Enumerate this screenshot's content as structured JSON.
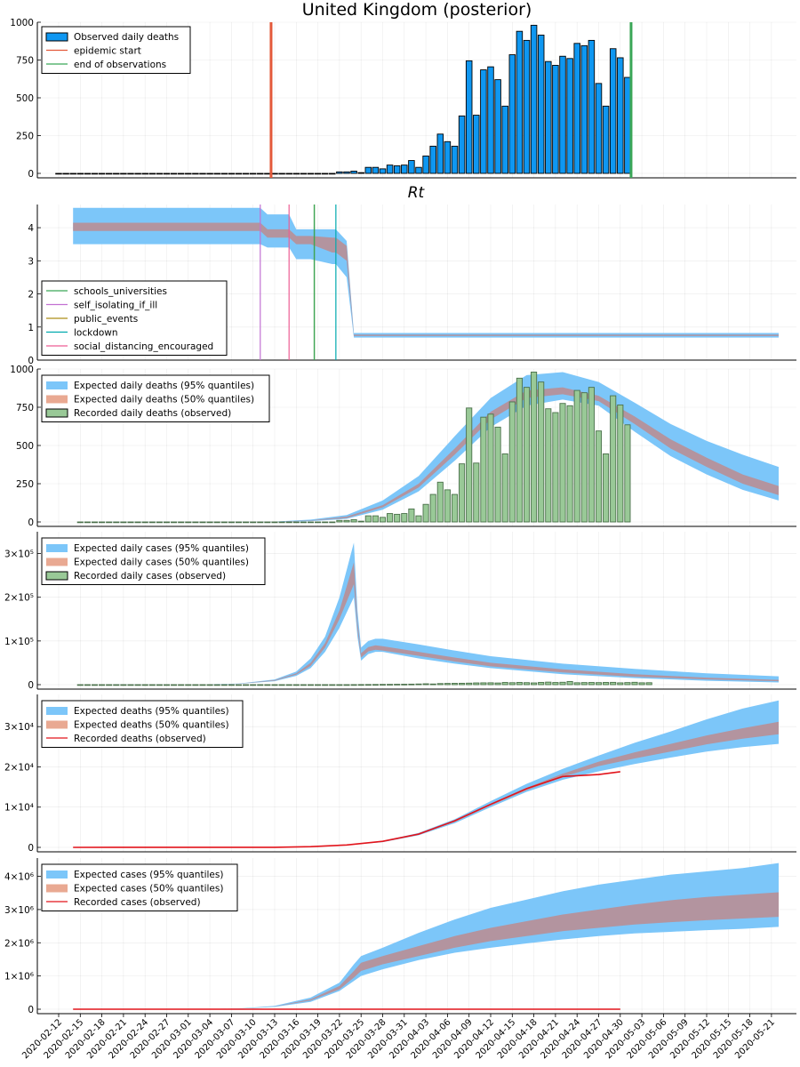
{
  "figure": {
    "xaxis": {
      "dates": [
        "2020-02-12",
        "2020-02-15",
        "2020-02-18",
        "2020-02-21",
        "2020-02-24",
        "2020-02-27",
        "2020-03-01",
        "2020-03-04",
        "2020-03-07",
        "2020-03-10",
        "2020-03-13",
        "2020-03-16",
        "2020-03-19",
        "2020-03-22",
        "2020-03-25",
        "2020-03-28",
        "2020-03-31",
        "2020-04-03",
        "2020-04-06",
        "2020-04-09",
        "2020-04-12",
        "2020-04-15",
        "2020-04-18",
        "2020-04-21",
        "2020-04-24",
        "2020-04-27",
        "2020-04-30",
        "2020-05-03",
        "2020-05-06",
        "2020-05-09",
        "2020-05-12",
        "2020-05-15",
        "2020-05-18",
        "2020-05-21"
      ]
    },
    "colors": {
      "bar_blue": "#0f97f1",
      "band95": "#7cc6f9",
      "band50": "#b3949f",
      "green_bar": "#99c997",
      "green_bar_edge": "#4a704a",
      "red_line": "#e2141b",
      "epidemic_start": "#e3593a",
      "end_obs": "#3aa657",
      "schools": "#3aa657",
      "self_isolating": "#c271d2",
      "public_events": "#ac8e18",
      "lockdown": "#00aaae",
      "social_distancing": "#ed5e93"
    }
  },
  "chart_data": [
    {
      "type": "bar",
      "title": "United Kingdom (posterior)",
      "ylim": [
        0,
        1000
      ],
      "yticks": [
        {
          "v": 0,
          "label": "0"
        },
        {
          "v": 250,
          "label": "250"
        },
        {
          "v": 500,
          "label": "500"
        },
        {
          "v": 750,
          "label": "750"
        },
        {
          "v": 1000,
          "label": "1000"
        }
      ],
      "legend": [
        "Observed daily deaths",
        "epidemic start",
        "end of observations"
      ],
      "legend_position": "top-left",
      "bar_start_day": 0,
      "values": [
        0,
        0,
        0,
        0,
        0,
        0,
        0,
        0,
        0,
        0,
        0,
        0,
        0,
        0,
        0,
        0,
        0,
        0,
        0,
        0,
        0,
        0,
        0,
        0,
        0,
        0,
        0,
        0,
        0,
        0,
        0,
        0,
        0,
        0,
        0,
        0,
        0,
        0,
        0,
        10,
        10,
        15,
        5,
        40,
        40,
        30,
        55,
        50,
        55,
        85,
        40,
        115,
        180,
        260,
        210,
        180,
        380,
        745,
        385,
        685,
        705,
        620,
        445,
        785,
        940,
        880,
        980,
        915,
        740,
        715,
        775,
        760,
        860,
        845,
        880,
        595,
        445,
        825,
        765,
        635
      ],
      "epidemic_start_day": 29.5,
      "end_observations_day": 79.5
    },
    {
      "type": "area",
      "title": "Rt",
      "ylim": [
        0,
        4.7
      ],
      "yticks": [
        {
          "v": 0,
          "label": "0"
        },
        {
          "v": 1,
          "label": "1"
        },
        {
          "v": 2,
          "label": "2"
        },
        {
          "v": 3,
          "label": "3"
        },
        {
          "v": 4,
          "label": "4"
        }
      ],
      "legend": [
        "schools_universities",
        "self_isolating_if_ill",
        "public_events",
        "lockdown",
        "social_distancing_encouraged"
      ],
      "legend_position": "bottom-left",
      "intervention_days": {
        "schools_universities": 35.5,
        "self_isolating_if_ill": 28,
        "public_events": 35.5,
        "lockdown": 38.5,
        "social_distancing_encouraged": 32
      },
      "x": [
        2,
        28,
        29,
        32,
        33,
        35,
        38,
        38.5,
        40,
        41,
        100
      ],
      "upper95": [
        4.6,
        4.6,
        4.4,
        4.4,
        3.95,
        3.95,
        3.95,
        3.95,
        3.6,
        0.82,
        0.82
      ],
      "lower95": [
        3.5,
        3.5,
        3.4,
        3.4,
        3.05,
        3.05,
        2.9,
        2.9,
        2.5,
        0.68,
        0.68
      ],
      "upper50": [
        4.15,
        4.15,
        3.95,
        3.95,
        3.75,
        3.75,
        3.7,
        3.7,
        3.45,
        0.77,
        0.77
      ],
      "lower50": [
        3.9,
        3.9,
        3.7,
        3.7,
        3.5,
        3.5,
        3.25,
        3.25,
        3.0,
        0.73,
        0.73
      ]
    },
    {
      "type": "area",
      "ylim": [
        0,
        1000
      ],
      "yticks": [
        {
          "v": 0,
          "label": "0"
        },
        {
          "v": 250,
          "label": "250"
        },
        {
          "v": 500,
          "label": "500"
        },
        {
          "v": 750,
          "label": "750"
        },
        {
          "v": 1000,
          "label": "1000"
        }
      ],
      "legend": [
        "Expected daily deaths (95% quantiles)",
        "Expected daily deaths (50% quantiles)",
        "Recorded daily deaths (observed)"
      ],
      "legend_position": "top-left",
      "bar_start_day": 3,
      "x": [
        2,
        30,
        35,
        40,
        45,
        50,
        55,
        60,
        65,
        70,
        75,
        80,
        85,
        90,
        95,
        100
      ],
      "upper95": [
        0,
        2,
        15,
        45,
        140,
        300,
        560,
        810,
        960,
        980,
        915,
        780,
        640,
        530,
        440,
        360
      ],
      "lower95": [
        0,
        1,
        5,
        20,
        80,
        200,
        400,
        620,
        760,
        800,
        760,
        590,
        430,
        310,
        210,
        140
      ],
      "upper50": [
        0,
        1,
        10,
        35,
        110,
        250,
        480,
        720,
        860,
        880,
        825,
        690,
        540,
        420,
        310,
        235
      ],
      "lower50": [
        0,
        0,
        8,
        25,
        95,
        225,
        440,
        670,
        810,
        835,
        790,
        640,
        480,
        360,
        250,
        175
      ],
      "bar_values": [
        0,
        0,
        0,
        0,
        0,
        0,
        0,
        0,
        0,
        0,
        0,
        0,
        0,
        0,
        0,
        0,
        0,
        0,
        0,
        0,
        0,
        0,
        0,
        0,
        0,
        0,
        0,
        0,
        0,
        0,
        0,
        0,
        0,
        0,
        0,
        0,
        10,
        10,
        15,
        5,
        40,
        40,
        30,
        55,
        50,
        55,
        85,
        40,
        115,
        180,
        260,
        210,
        180,
        380,
        745,
        385,
        685,
        705,
        620,
        445,
        785,
        940,
        880,
        980,
        915,
        740,
        715,
        775,
        760,
        860,
        845,
        880,
        595,
        445,
        825,
        765,
        635
      ]
    },
    {
      "type": "area",
      "ylim": [
        -5000,
        350000
      ],
      "yticks": [
        {
          "v": 0,
          "label": "0"
        },
        {
          "v": 100000,
          "label": "1×10⁵"
        },
        {
          "v": 200000,
          "label": "2×10⁵"
        },
        {
          "v": 300000,
          "label": "3×10⁵"
        }
      ],
      "legend": [
        "Expected daily cases (95% quantiles)",
        "Expected daily cases (50% quantiles)",
        "Recorded daily cases (observed)"
      ],
      "legend_position": "top-left",
      "bar_start_day": 3,
      "x": [
        2,
        20,
        25,
        30,
        33,
        35,
        37,
        39,
        41,
        41.5,
        42,
        43,
        44,
        45,
        50,
        55,
        60,
        70,
        80,
        90,
        100
      ],
      "upper95": [
        0,
        500,
        2500,
        12000,
        30000,
        60000,
        110000,
        200000,
        325000,
        170000,
        85000,
        100000,
        105000,
        105000,
        92000,
        78000,
        65000,
        48000,
        36000,
        26000,
        19000
      ],
      "lower95": [
        0,
        400,
        1800,
        8000,
        20000,
        38000,
        75000,
        130000,
        200000,
        110000,
        55000,
        70000,
        75000,
        75000,
        60000,
        48000,
        38000,
        24000,
        15000,
        9000,
        5000
      ],
      "upper50": [
        0,
        450,
        2200,
        10500,
        26000,
        50000,
        95000,
        170000,
        280000,
        145000,
        72000,
        86000,
        90000,
        88000,
        75000,
        62000,
        50000,
        35000,
        24000,
        16000,
        11000
      ],
      "lower50": [
        0,
        420,
        2000,
        9000,
        23000,
        43000,
        85000,
        150000,
        230000,
        125000,
        62000,
        76000,
        80000,
        78000,
        66000,
        53000,
        42000,
        28000,
        18000,
        12000,
        8000
      ],
      "bar_values": [
        0,
        0,
        0,
        0,
        0,
        0,
        0,
        0,
        0,
        0,
        0,
        0,
        0,
        0,
        0,
        0,
        0,
        0,
        0,
        0,
        0,
        0,
        0,
        0,
        0,
        0,
        0,
        0,
        0,
        0,
        0,
        0,
        0,
        0,
        0,
        0,
        0,
        0,
        100,
        200,
        300,
        400,
        600,
        700,
        900,
        1000,
        1200,
        1500,
        2000,
        1500,
        2500,
        2800,
        3000,
        3200,
        3500,
        4000,
        4200,
        4300,
        3800,
        5000,
        4500,
        5100,
        4600,
        4000,
        5200,
        5800,
        4900,
        5500,
        7200,
        4400,
        4800,
        5000,
        4700,
        5100,
        5300,
        4200,
        4800,
        5400,
        4300,
        4500
      ]
    },
    {
      "type": "area",
      "ylim": [
        -500,
        38000
      ],
      "yticks": [
        {
          "v": 0,
          "label": "0"
        },
        {
          "v": 10000,
          "label": "1×10⁴"
        },
        {
          "v": 20000,
          "label": "2×10⁴"
        },
        {
          "v": 30000,
          "label": "3×10⁴"
        }
      ],
      "legend": [
        "Expected deaths (95% quantiles)",
        "Expected deaths (50% quantiles)",
        "Recorded deaths (observed)"
      ],
      "legend_position": "top-left",
      "x": [
        2,
        30,
        35,
        40,
        45,
        50,
        55,
        60,
        65,
        70,
        75,
        80,
        85,
        90,
        95,
        100
      ],
      "upper95": [
        0,
        30,
        200,
        650,
        1600,
        3600,
        7000,
        11500,
        15800,
        19500,
        22800,
        26000,
        28800,
        31800,
        34500,
        36500
      ],
      "lower95": [
        0,
        20,
        150,
        550,
        1300,
        3000,
        6000,
        10000,
        13800,
        16800,
        18900,
        20700,
        22300,
        23800,
        24900,
        25700
      ],
      "upper50": [
        0,
        25,
        180,
        610,
        1450,
        3300,
        6600,
        10800,
        14800,
        18300,
        21300,
        23600,
        25700,
        27800,
        29600,
        31200
      ],
      "lower50": [
        0,
        22,
        160,
        580,
        1400,
        3200,
        6300,
        10400,
        14200,
        17500,
        20200,
        22100,
        23800,
        25600,
        27000,
        28100
      ],
      "line_x": [
        2,
        30,
        35,
        40,
        45,
        50,
        55,
        60,
        65,
        70,
        75,
        78
      ],
      "line_y": [
        0,
        20,
        170,
        600,
        1500,
        3300,
        6600,
        10700,
        14600,
        17600,
        18100,
        18800
      ]
    },
    {
      "type": "area",
      "ylim": [
        -100000,
        4550000
      ],
      "yticks": [
        {
          "v": 0,
          "label": "0"
        },
        {
          "v": 1000000,
          "label": "1×10⁶"
        },
        {
          "v": 2000000,
          "label": "2×10⁶"
        },
        {
          "v": 3000000,
          "label": "3×10⁶"
        },
        {
          "v": 4000000,
          "label": "4×10⁶"
        }
      ],
      "legend": [
        "Expected cases (95% quantiles)",
        "Expected cases (50% quantiles)",
        "Recorded cases (observed)"
      ],
      "legend_position": "top-left",
      "x": [
        2,
        20,
        25,
        30,
        35,
        39,
        41,
        42,
        45,
        50,
        55,
        60,
        65,
        70,
        75,
        80,
        85,
        90,
        95,
        100
      ],
      "upper95": [
        0,
        5000,
        20000,
        100000,
        350000,
        800000,
        1350000,
        1600000,
        1850000,
        2300000,
        2700000,
        3050000,
        3300000,
        3550000,
        3750000,
        3900000,
        4050000,
        4150000,
        4250000,
        4400000
      ],
      "lower95": [
        0,
        3000,
        15000,
        70000,
        220000,
        550000,
        850000,
        1000000,
        1200000,
        1480000,
        1700000,
        1850000,
        1980000,
        2100000,
        2200000,
        2280000,
        2330000,
        2380000,
        2420000,
        2480000
      ],
      "upper50": [
        0,
        4000,
        17000,
        85000,
        300000,
        700000,
        1150000,
        1400000,
        1600000,
        1900000,
        2200000,
        2450000,
        2650000,
        2850000,
        3000000,
        3150000,
        3280000,
        3380000,
        3450000,
        3520000
      ],
      "lower50": [
        0,
        3500,
        16000,
        80000,
        260000,
        600000,
        950000,
        1150000,
        1350000,
        1600000,
        1850000,
        2050000,
        2200000,
        2350000,
        2450000,
        2550000,
        2620000,
        2680000,
        2730000,
        2780000
      ],
      "line_x": [
        2,
        78
      ],
      "line_y": [
        0,
        0
      ]
    }
  ]
}
